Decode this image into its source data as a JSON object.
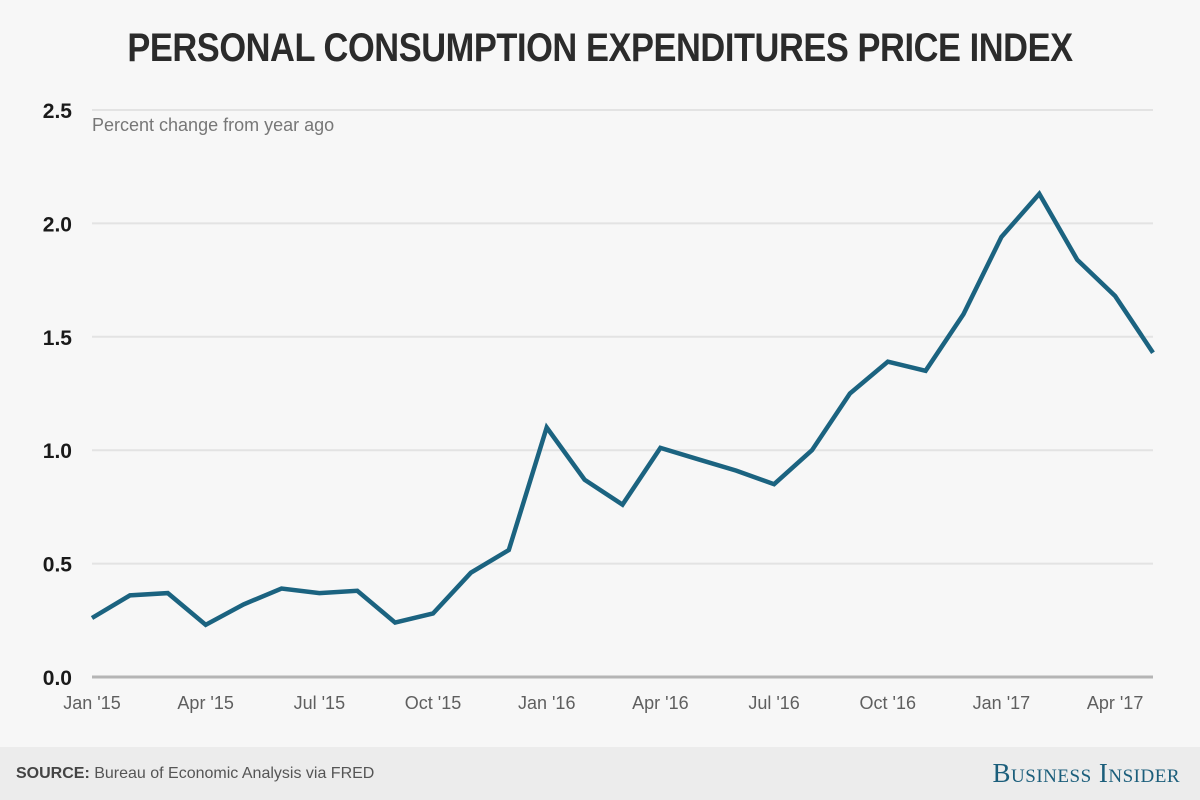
{
  "chart_data": {
    "type": "line",
    "title": "PERSONAL CONSUMPTION EXPENDITURES PRICE INDEX",
    "ylabel": "Percent change from year ago",
    "xlabel": "",
    "ylim": [
      0,
      2.5
    ],
    "yticks": [
      "0.0",
      "0.5",
      "1.0",
      "1.5",
      "2.0",
      "2.5"
    ],
    "ytick_values": [
      0,
      0.5,
      1.0,
      1.5,
      2.0,
      2.5
    ],
    "xticks": [
      "Jan '15",
      "Apr '15",
      "Jul '15",
      "Oct '15",
      "Jan '16",
      "Apr '16",
      "Jul '16",
      "Oct '16",
      "Jan '17",
      "Apr '17"
    ],
    "xtick_month_index": [
      0,
      3,
      6,
      9,
      12,
      15,
      18,
      21,
      24,
      27
    ],
    "x_range_months": [
      0,
      28
    ],
    "grid": true,
    "series": [
      {
        "name": "PCE Price Index, percent change from year ago",
        "color": "#1b6380",
        "x": [
          "2015-01",
          "2015-02",
          "2015-03",
          "2015-04",
          "2015-05",
          "2015-06",
          "2015-07",
          "2015-08",
          "2015-09",
          "2015-10",
          "2015-11",
          "2015-12",
          "2016-01",
          "2016-02",
          "2016-03",
          "2016-04",
          "2016-05",
          "2016-06",
          "2016-07",
          "2016-08",
          "2016-09",
          "2016-10",
          "2016-11",
          "2016-12",
          "2017-01",
          "2017-02",
          "2017-03",
          "2017-04",
          "2017-05"
        ],
        "values": [
          0.26,
          0.36,
          0.37,
          0.23,
          0.32,
          0.39,
          0.37,
          0.38,
          0.24,
          0.28,
          0.46,
          0.56,
          1.1,
          0.87,
          0.76,
          1.01,
          0.96,
          0.91,
          0.85,
          1.0,
          1.25,
          1.39,
          1.35,
          1.6,
          1.94,
          2.13,
          1.84,
          1.68,
          1.43
        ]
      }
    ]
  },
  "footer": {
    "source_label": "SOURCE:",
    "source_text": " Bureau of Economic Analysis via FRED",
    "brand": "Business Insider"
  },
  "colors": {
    "line": "#1b6380",
    "grid": "#e3e3e3",
    "baseline": "#b5b5b5",
    "background": "#f7f7f7",
    "footer_bg": "#ececec",
    "brand": "#1b5e7b"
  }
}
